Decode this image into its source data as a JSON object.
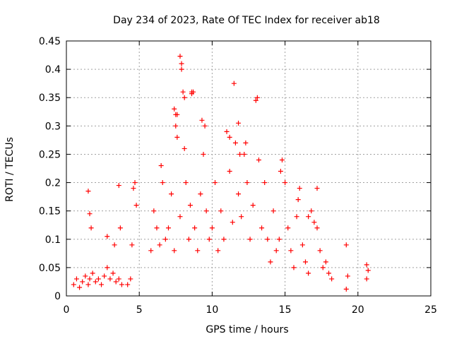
{
  "chart_data": {
    "type": "scatter",
    "title": "Day 234 of 2023, Rate Of TEC Index for receiver ab18",
    "xlabel": "GPS time / hours",
    "ylabel": "ROTI / TECUs",
    "xlim": [
      0,
      25
    ],
    "ylim": [
      0,
      0.45
    ],
    "xticks": [
      "0",
      "5",
      "10",
      "15",
      "20",
      "25"
    ],
    "yticks": [
      "0",
      "0.05",
      "0.1",
      "0.15",
      "0.2",
      "0.25",
      "0.3",
      "0.35",
      "0.4",
      "0.45"
    ],
    "grid": true,
    "marker": "plus",
    "color": "#ff0000",
    "series": [
      {
        "name": "",
        "x": [
          0.5,
          0.7,
          0.9,
          1.1,
          1.3,
          1.5,
          1.6,
          1.8,
          2.0,
          2.2,
          2.4,
          2.6,
          2.8,
          3.0,
          3.2,
          3.4,
          3.6,
          3.8,
          1.5,
          1.6,
          1.7,
          2.8,
          3.3,
          3.6,
          3.7,
          4.2,
          4.4,
          4.6,
          4.7,
          4.5,
          4.8,
          5.8,
          6.0,
          6.2,
          6.4,
          6.5,
          6.6,
          6.8,
          7.0,
          7.2,
          7.4,
          7.5,
          7.6,
          7.8,
          7.9,
          8.0,
          8.2,
          8.4,
          8.5,
          8.6,
          8.8,
          9.0,
          9.2,
          9.4,
          9.5,
          9.6,
          9.8,
          10.0,
          10.2,
          10.4,
          10.6,
          10.8,
          11.0,
          11.2,
          11.4,
          11.5,
          11.6,
          11.8,
          12.0,
          12.2,
          12.4,
          12.6,
          12.8,
          13.0,
          13.2,
          13.4,
          13.6,
          13.8,
          14.0,
          14.2,
          14.4,
          14.6,
          14.8,
          15.0,
          15.2,
          15.4,
          15.6,
          15.8,
          16.0,
          16.2,
          16.4,
          16.6,
          16.8,
          17.0,
          17.2,
          17.4,
          17.6,
          17.8,
          18.0,
          18.2,
          7.8,
          7.9,
          8.1,
          8.7,
          7.4,
          7.5,
          11.8,
          13.1,
          11.2,
          11.9,
          9.3,
          8.6,
          8.1,
          7.6,
          12.3,
          14.7,
          15.9,
          16.6,
          17.2,
          19.2,
          19.3,
          20.6,
          20.7,
          19.2,
          20.6
        ],
        "y": [
          0.02,
          0.03,
          0.015,
          0.025,
          0.035,
          0.02,
          0.03,
          0.04,
          0.025,
          0.03,
          0.02,
          0.035,
          0.05,
          0.03,
          0.04,
          0.025,
          0.03,
          0.02,
          0.185,
          0.145,
          0.12,
          0.105,
          0.09,
          0.195,
          0.12,
          0.02,
          0.03,
          0.19,
          0.2,
          0.09,
          0.16,
          0.08,
          0.15,
          0.12,
          0.09,
          0.23,
          0.2,
          0.1,
          0.12,
          0.18,
          0.08,
          0.32,
          0.28,
          0.14,
          0.41,
          0.36,
          0.2,
          0.1,
          0.16,
          0.36,
          0.12,
          0.08,
          0.18,
          0.25,
          0.3,
          0.15,
          0.1,
          0.12,
          0.2,
          0.08,
          0.15,
          0.1,
          0.29,
          0.22,
          0.13,
          0.375,
          0.27,
          0.18,
          0.14,
          0.25,
          0.2,
          0.1,
          0.16,
          0.345,
          0.24,
          0.12,
          0.2,
          0.1,
          0.06,
          0.15,
          0.08,
          0.1,
          0.24,
          0.2,
          0.12,
          0.08,
          0.05,
          0.14,
          0.19,
          0.09,
          0.06,
          0.04,
          0.15,
          0.13,
          0.19,
          0.08,
          0.05,
          0.06,
          0.04,
          0.03,
          0.423,
          0.4,
          0.35,
          0.36,
          0.33,
          0.3,
          0.305,
          0.35,
          0.28,
          0.25,
          0.31,
          0.357,
          0.26,
          0.32,
          0.27,
          0.22,
          0.17,
          0.14,
          0.12,
          0.09,
          0.035,
          0.055,
          0.045,
          0.012,
          0.03
        ]
      }
    ]
  }
}
